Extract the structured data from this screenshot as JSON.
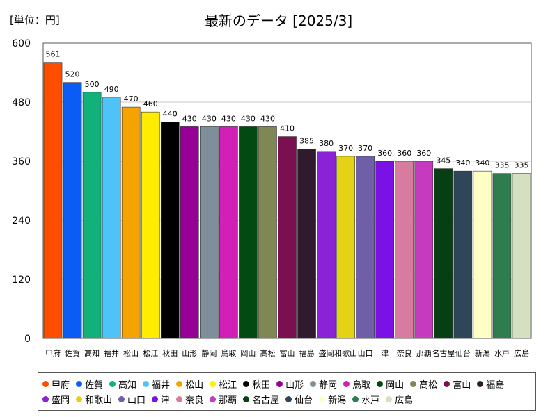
{
  "header": {
    "unit": "[単位：円]",
    "title": "最新のデータ [2025/3]"
  },
  "chart_data": {
    "type": "bar",
    "title": "最新のデータ [2025/3]",
    "unit_label": "[単位：円]",
    "ylim": [
      0,
      600
    ],
    "yticks": [
      0,
      120,
      240,
      360,
      480,
      600
    ],
    "grid": true,
    "legend_position": "bottom",
    "categories": [
      "甲府",
      "佐賀",
      "高知",
      "福井",
      "松山",
      "松江",
      "秋田",
      "山形",
      "静岡",
      "鳥取",
      "岡山",
      "高松",
      "富山",
      "福島",
      "盛岡",
      "和歌山",
      "山口",
      "津",
      "奈良",
      "那覇",
      "名古屋",
      "仙台",
      "新潟",
      "水戸",
      "広島"
    ],
    "values": [
      561,
      520,
      500,
      490,
      470,
      460,
      440,
      430,
      430,
      430,
      430,
      430,
      410,
      385,
      380,
      370,
      370,
      360,
      360,
      360,
      345,
      340,
      340,
      335,
      335
    ],
    "colors": [
      "#ff4d00",
      "#0a5cf5",
      "#12b07a",
      "#4fc3f7",
      "#f5a300",
      "#ffec00",
      "#000000",
      "#970097",
      "#7f8f9a",
      "#d020b8",
      "#024a12",
      "#7f8755",
      "#7a1050",
      "#2f1a2e",
      "#8a22d6",
      "#e3d215",
      "#6e5fa8",
      "#7a12e6",
      "#d87ba0",
      "#c63ac0",
      "#063f14",
      "#2f4558",
      "#ffffc5",
      "#2e7d4f",
      "#d5dfc2"
    ]
  }
}
